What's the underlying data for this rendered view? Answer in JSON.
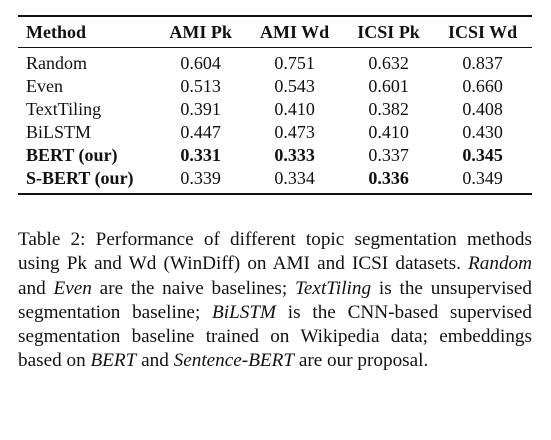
{
  "table": {
    "headers": [
      "Method",
      "AMI Pk",
      "AMI Wd",
      "ICSI Pk",
      "ICSI Wd"
    ],
    "rows": [
      {
        "method": "Random",
        "values": [
          "0.604",
          "0.751",
          "0.632",
          "0.837"
        ],
        "bold_method": false,
        "bold_values": [
          false,
          false,
          false,
          false
        ]
      },
      {
        "method": "Even",
        "values": [
          "0.513",
          "0.543",
          "0.601",
          "0.660"
        ],
        "bold_method": false,
        "bold_values": [
          false,
          false,
          false,
          false
        ]
      },
      {
        "method": "TextTiling",
        "values": [
          "0.391",
          "0.410",
          "0.382",
          "0.408"
        ],
        "bold_method": false,
        "bold_values": [
          false,
          false,
          false,
          false
        ]
      },
      {
        "method": "BiLSTM",
        "values": [
          "0.447",
          "0.473",
          "0.410",
          "0.430"
        ],
        "bold_method": false,
        "bold_values": [
          false,
          false,
          false,
          false
        ]
      },
      {
        "method": "BERT (our)",
        "values": [
          "0.331",
          "0.333",
          "0.337",
          "0.345"
        ],
        "bold_method": true,
        "bold_values": [
          true,
          true,
          false,
          true
        ]
      },
      {
        "method": "S-BERT (our)",
        "values": [
          "0.339",
          "0.334",
          "0.336",
          "0.349"
        ],
        "bold_method": true,
        "bold_values": [
          false,
          false,
          true,
          false
        ]
      }
    ]
  },
  "caption": {
    "label": "Table 2:",
    "p1": " Performance of different topic segmentation methods using Pk and Wd (WinDiff) on AMI and ICSI datasets.  ",
    "e1": "Random",
    "p2": " and ",
    "e2": "Even",
    "p3": " are the naive baselines; ",
    "e3": "TextTiling",
    "p4": " is the unsupervised segmentation baseline; ",
    "e4": "BiLSTM",
    "p5": " is the CNN-based supervised segmentation baseline trained on Wikipedia data; embeddings based on ",
    "e5": "BERT",
    "p6": " and ",
    "e6": "Sentence-BERT",
    "p7": " are our proposal."
  }
}
